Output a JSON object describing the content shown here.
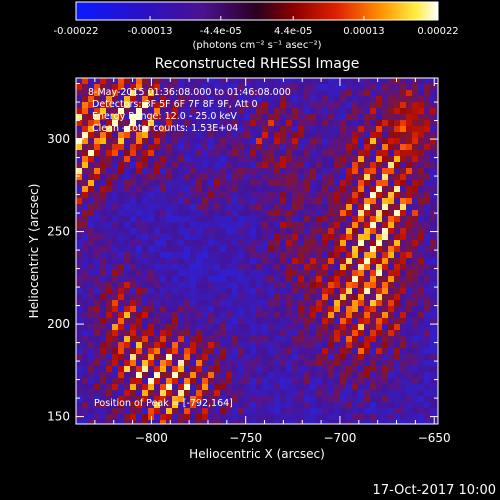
{
  "colorbar": {
    "tick_labels": [
      "-0.00022",
      "-0.00013",
      "-4.4e-05",
      "4.4e-05",
      "0.00013",
      "0.00022"
    ],
    "tick_values": [
      -0.00022,
      -0.00013,
      -4.4e-05,
      4.4e-05,
      0.00013,
      0.00022
    ],
    "range": [
      -0.00022,
      0.00022
    ],
    "unit_label": "(photons cm⁻² s⁻¹ asec⁻²)"
  },
  "chart_data": {
    "type": "heatmap",
    "title": "Reconstructed RHESSI Image",
    "xlabel": "Heliocentric X (arcsec)",
    "ylabel": "Heliocentric Y (arcsec)",
    "xlim": [
      -840,
      -648
    ],
    "ylim": [
      146,
      333
    ],
    "xticks": [
      -800,
      -750,
      -700,
      -650
    ],
    "yticks": [
      150,
      200,
      250,
      300
    ],
    "xtick_labels": [
      "−800",
      "−750",
      "−700",
      "−650"
    ],
    "ytick_labels": [
      "150",
      "200",
      "250",
      "300"
    ],
    "annotations": [
      "8-May-2015 01:36:08.000 to 01:46:08.000",
      "Detectors: 3F 5F 6F 7F 8F 9F, Att 0",
      "Energy Range: 12.0 - 25.0 keV",
      "Clean - total counts: 1.53E+04"
    ],
    "peak_label": "Position of Peak = [-792,164]",
    "peak": [
      -792,
      164
    ],
    "grid": false
  },
  "footer": {
    "date": "17-Oct-2017 10:00"
  }
}
